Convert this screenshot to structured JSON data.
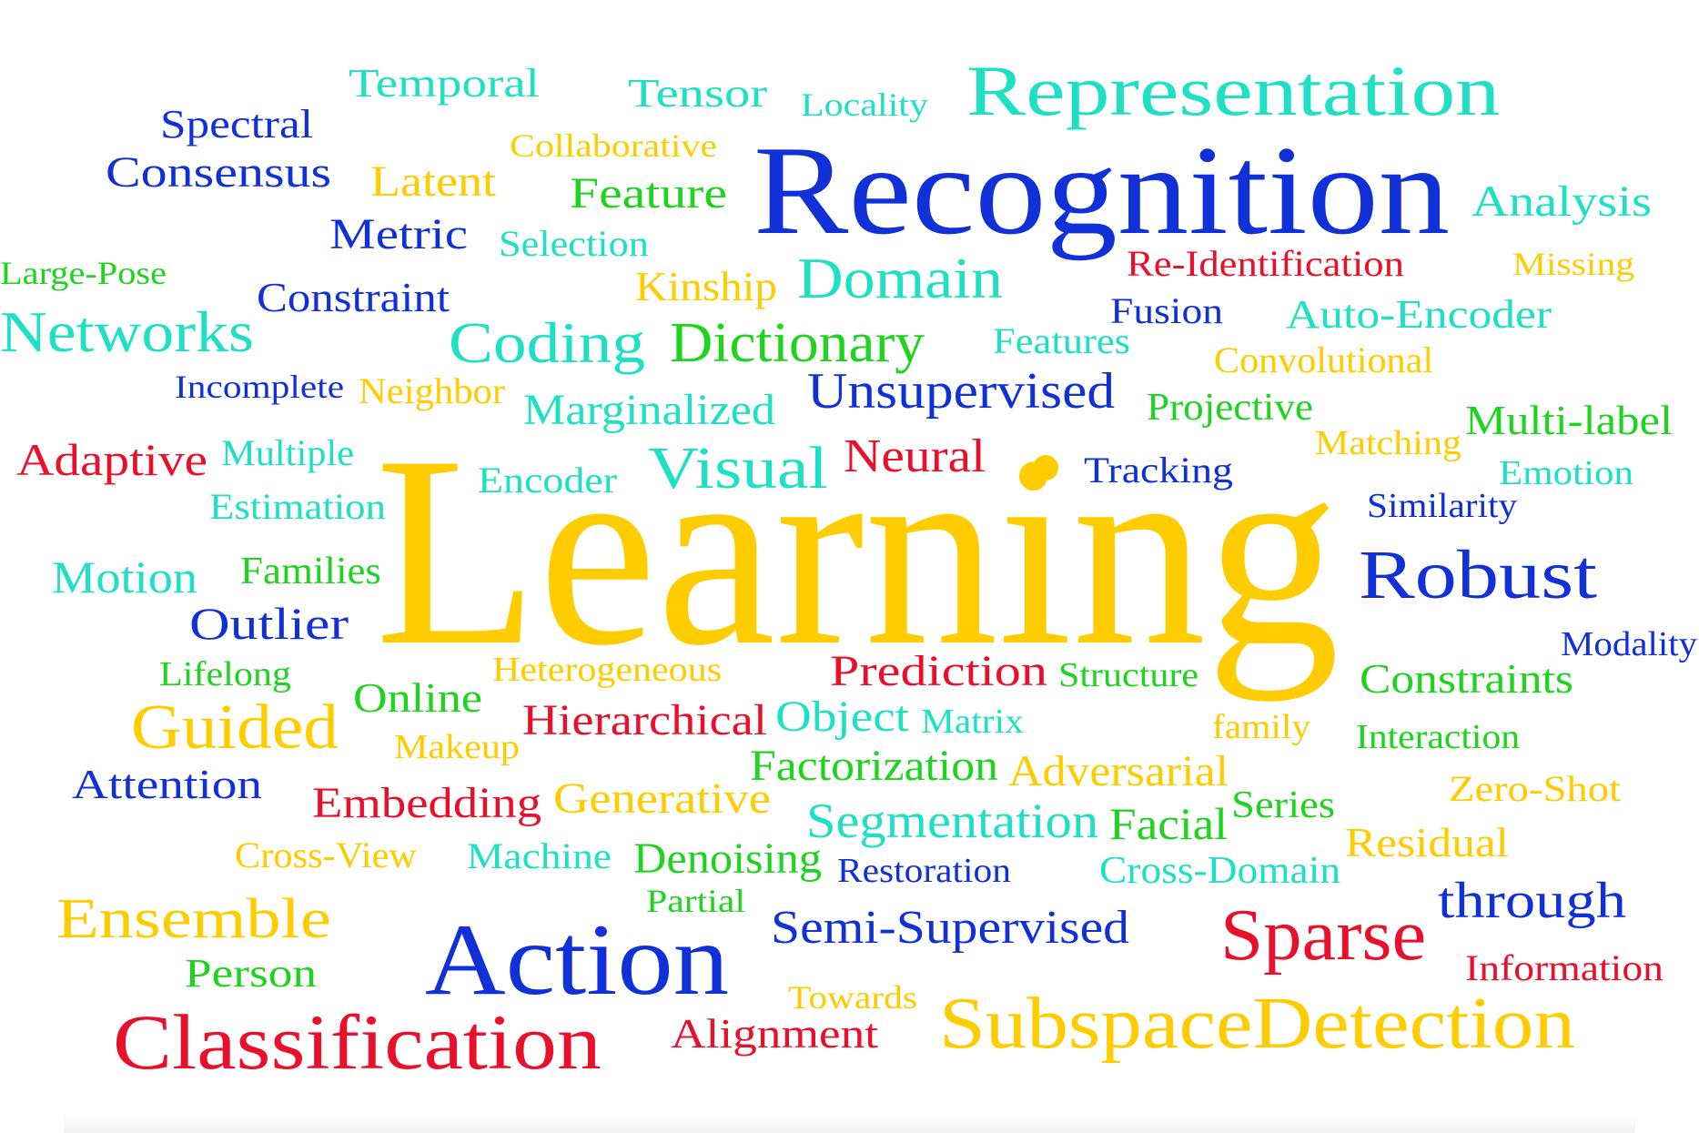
{
  "colors": {
    "blue": "#1030d8",
    "cyan": "#1ee0c4",
    "yellow": "#ffcc00",
    "green": "#1ed41e",
    "red": "#e8102a",
    "background": "#ffffff"
  },
  "bullet_color": "yellow",
  "words": [
    {
      "text": "Learning",
      "color": "yellow"
    },
    {
      "text": "Recognition",
      "color": "blue"
    },
    {
      "text": "Representation",
      "color": "cyan"
    },
    {
      "text": "Temporal",
      "color": "cyan"
    },
    {
      "text": "Tensor",
      "color": "cyan"
    },
    {
      "text": "Locality",
      "color": "cyan"
    },
    {
      "text": "Spectral",
      "color": "blue"
    },
    {
      "text": "Collaborative",
      "color": "yellow"
    },
    {
      "text": "Consensus",
      "color": "blue"
    },
    {
      "text": "Latent",
      "color": "yellow"
    },
    {
      "text": "Feature",
      "color": "green"
    },
    {
      "text": "Analysis",
      "color": "cyan"
    },
    {
      "text": "Metric",
      "color": "blue"
    },
    {
      "text": "Selection",
      "color": "cyan"
    },
    {
      "text": "Re-Identification",
      "color": "red"
    },
    {
      "text": "Missing",
      "color": "yellow"
    },
    {
      "text": "Large-Pose",
      "color": "green"
    },
    {
      "text": "Kinship",
      "color": "yellow"
    },
    {
      "text": "Domain",
      "color": "cyan"
    },
    {
      "text": "Constraint",
      "color": "blue"
    },
    {
      "text": "Fusion",
      "color": "blue"
    },
    {
      "text": "Auto-Encoder",
      "color": "cyan"
    },
    {
      "text": "Networks",
      "color": "cyan"
    },
    {
      "text": "Coding",
      "color": "cyan"
    },
    {
      "text": "Dictionary",
      "color": "green"
    },
    {
      "text": "Features",
      "color": "cyan"
    },
    {
      "text": "Convolutional",
      "color": "yellow"
    },
    {
      "text": "Incomplete",
      "color": "blue"
    },
    {
      "text": "Neighbor",
      "color": "yellow"
    },
    {
      "text": "Unsupervised",
      "color": "blue"
    },
    {
      "text": "Marginalized",
      "color": "cyan"
    },
    {
      "text": "Projective",
      "color": "green"
    },
    {
      "text": "Multi-label",
      "color": "green"
    },
    {
      "text": "Adaptive",
      "color": "red"
    },
    {
      "text": "Multiple",
      "color": "cyan"
    },
    {
      "text": "Visual",
      "color": "cyan"
    },
    {
      "text": "Neural",
      "color": "red"
    },
    {
      "text": "Matching",
      "color": "yellow"
    },
    {
      "text": "Encoder",
      "color": "cyan"
    },
    {
      "text": "Tracking",
      "color": "blue"
    },
    {
      "text": "Emotion",
      "color": "cyan"
    },
    {
      "text": "Estimation",
      "color": "cyan"
    },
    {
      "text": "Similarity",
      "color": "blue"
    },
    {
      "text": "Motion",
      "color": "cyan"
    },
    {
      "text": "Families",
      "color": "green"
    },
    {
      "text": "Robust",
      "color": "blue"
    },
    {
      "text": "Outlier",
      "color": "blue"
    },
    {
      "text": "Modality",
      "color": "blue"
    },
    {
      "text": "Lifelong",
      "color": "green"
    },
    {
      "text": "Heterogeneous",
      "color": "yellow"
    },
    {
      "text": "Prediction",
      "color": "red"
    },
    {
      "text": "Structure",
      "color": "green"
    },
    {
      "text": "Constraints",
      "color": "green"
    },
    {
      "text": "Online",
      "color": "green"
    },
    {
      "text": "Guided",
      "color": "yellow"
    },
    {
      "text": "Hierarchical",
      "color": "red"
    },
    {
      "text": "Object",
      "color": "cyan"
    },
    {
      "text": "Matrix",
      "color": "cyan"
    },
    {
      "text": "family",
      "color": "yellow"
    },
    {
      "text": "Interaction",
      "color": "green"
    },
    {
      "text": "Makeup",
      "color": "yellow"
    },
    {
      "text": "Factorization",
      "color": "green"
    },
    {
      "text": "Adversarial",
      "color": "yellow"
    },
    {
      "text": "Attention",
      "color": "blue"
    },
    {
      "text": "Zero-Shot",
      "color": "yellow"
    },
    {
      "text": "Embedding",
      "color": "red"
    },
    {
      "text": "Generative",
      "color": "yellow"
    },
    {
      "text": "Segmentation",
      "color": "cyan"
    },
    {
      "text": "Facial",
      "color": "green"
    },
    {
      "text": "Series",
      "color": "green"
    },
    {
      "text": "Residual",
      "color": "yellow"
    },
    {
      "text": "Cross-View",
      "color": "yellow"
    },
    {
      "text": "Machine",
      "color": "cyan"
    },
    {
      "text": "Denoising",
      "color": "green"
    },
    {
      "text": "Restoration",
      "color": "blue"
    },
    {
      "text": "Cross-Domain",
      "color": "cyan"
    },
    {
      "text": "Partial",
      "color": "green"
    },
    {
      "text": "through",
      "color": "blue"
    },
    {
      "text": "Ensemble",
      "color": "yellow"
    },
    {
      "text": "Semi-Supervised",
      "color": "blue"
    },
    {
      "text": "Sparse",
      "color": "red"
    },
    {
      "text": "Action",
      "color": "blue"
    },
    {
      "text": "Person",
      "color": "green"
    },
    {
      "text": "Information",
      "color": "red"
    },
    {
      "text": "Towards",
      "color": "yellow"
    },
    {
      "text": "Classification",
      "color": "red"
    },
    {
      "text": "Alignment",
      "color": "red"
    },
    {
      "text": "SubspaceDetection",
      "color": "yellow"
    }
  ]
}
